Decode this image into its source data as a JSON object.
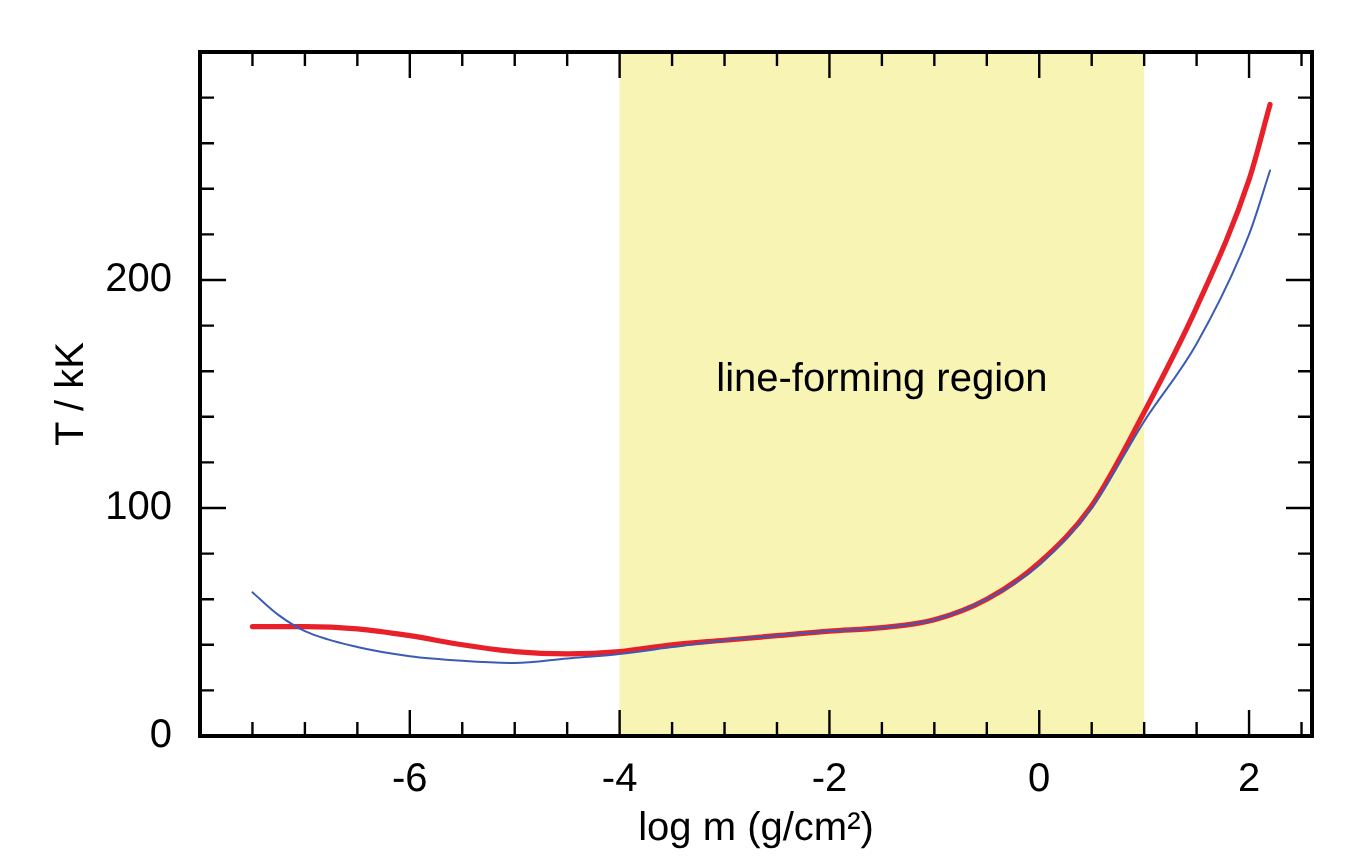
{
  "chart_data": {
    "type": "line",
    "xlabel": "log m (g/cm²)",
    "ylabel": "T / kK",
    "xlim": [
      -8,
      2.6
    ],
    "ylim": [
      0,
      300
    ],
    "xticks": [
      {
        "value": -7.5,
        "label": null
      },
      {
        "value": -7,
        "label": null
      },
      {
        "value": -6.5,
        "label": null
      },
      -6,
      {
        "value": -5.5,
        "label": null
      },
      {
        "value": -5,
        "label": null
      },
      {
        "value": -4.5,
        "label": null
      },
      -4,
      {
        "value": -3.5,
        "label": null
      },
      {
        "value": -3,
        "label": null
      },
      {
        "value": -2.5,
        "label": null
      },
      -2,
      {
        "value": -1.5,
        "label": null
      },
      {
        "value": -1,
        "label": null
      },
      {
        "value": -0.5,
        "label": null
      },
      0,
      {
        "value": 0.5,
        "label": null
      },
      {
        "value": 1,
        "label": null
      },
      {
        "value": 1.5,
        "label": null
      },
      2,
      {
        "value": 2.5,
        "label": null
      }
    ],
    "yticks": [
      0,
      {
        "value": 20,
        "label": null
      },
      {
        "value": 40,
        "label": null
      },
      {
        "value": 60,
        "label": null
      },
      {
        "value": 80,
        "label": null
      },
      100,
      {
        "value": 120,
        "label": null
      },
      {
        "value": 140,
        "label": null
      },
      {
        "value": 160,
        "label": null
      },
      {
        "value": 180,
        "label": null
      },
      200,
      {
        "value": 220,
        "label": null
      },
      {
        "value": 240,
        "label": null
      },
      {
        "value": 260,
        "label": null
      },
      {
        "value": 280,
        "label": null
      }
    ],
    "grid": false,
    "legend": false,
    "marker": "none",
    "line_style": "solid",
    "bands": [
      {
        "axis": "x",
        "from": -4,
        "to": 1,
        "label": "line-forming region",
        "color": "#f8f5b4"
      }
    ],
    "series": [
      {
        "color": "#3b5bb5",
        "x": [
          -7.5,
          -7.25,
          -7,
          -6.5,
          -6,
          -5.5,
          -5,
          -4.5,
          -4,
          -3.5,
          -3,
          -2.5,
          -2,
          -1.5,
          -1,
          -0.5,
          0,
          0.5,
          1,
          1.5,
          2,
          2.2
        ],
        "values": [
          63,
          53,
          46,
          39,
          35,
          33,
          32,
          34,
          36,
          39,
          42,
          44,
          46,
          47.5,
          51,
          60,
          75,
          100,
          138,
          172,
          220,
          248
        ]
      },
      {
        "color": "#e8202a",
        "x": [
          -7.5,
          -7,
          -6.5,
          -6,
          -5.5,
          -5,
          -4.5,
          -4,
          -3.5,
          -3,
          -2.5,
          -2,
          -1.5,
          -1,
          -0.5,
          0,
          0.5,
          1,
          1.5,
          2,
          2.2
        ],
        "values": [
          48,
          48,
          47,
          44,
          40,
          37,
          36,
          37,
          40,
          42,
          44,
          46,
          47.5,
          51,
          60,
          76,
          101,
          142,
          188,
          244,
          277
        ]
      }
    ]
  }
}
